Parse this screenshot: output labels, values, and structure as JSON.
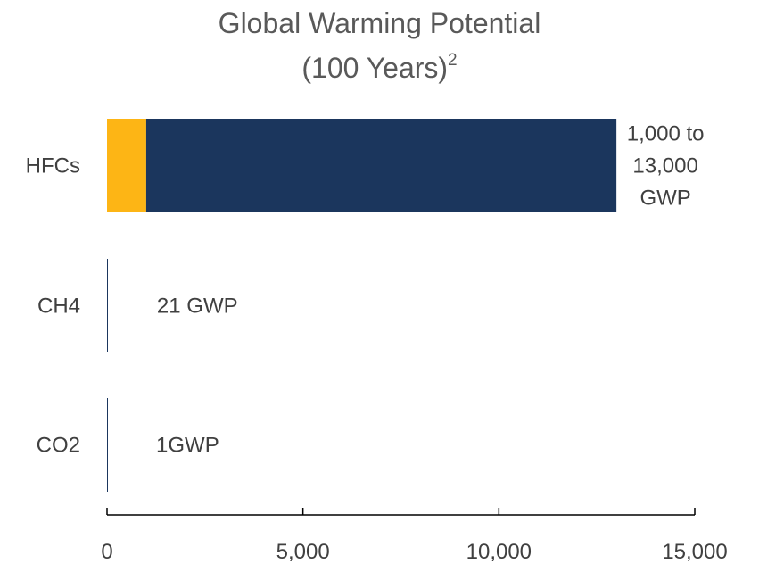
{
  "chart_data": {
    "type": "bar",
    "orientation": "horizontal",
    "stacked": true,
    "title": "Global Warming Potential",
    "subtitle": "(100 Years)",
    "subtitle_superscript": "2",
    "categories": [
      "HFCs",
      "CH4",
      "CO2"
    ],
    "series": [
      {
        "color": "#FDB515",
        "values": [
          1000,
          0,
          0
        ]
      },
      {
        "color": "#1B365D",
        "values": [
          12000,
          21,
          1
        ]
      }
    ],
    "data_labels": [
      {
        "category": "HFCs",
        "lines": [
          "1,000 to",
          "13,000",
          "GWP"
        ]
      },
      {
        "category": "CH4",
        "lines": [
          "21 GWP"
        ]
      },
      {
        "category": "CO2",
        "lines": [
          "1GWP"
        ]
      }
    ],
    "xlim": [
      0,
      15000
    ],
    "x_ticks": [
      0,
      5000,
      10000,
      15000
    ],
    "x_tick_labels": [
      "0",
      "5,000",
      "10,000",
      "15,000"
    ],
    "xlabel": "",
    "ylabel": "",
    "grid": false,
    "legend": "none"
  }
}
